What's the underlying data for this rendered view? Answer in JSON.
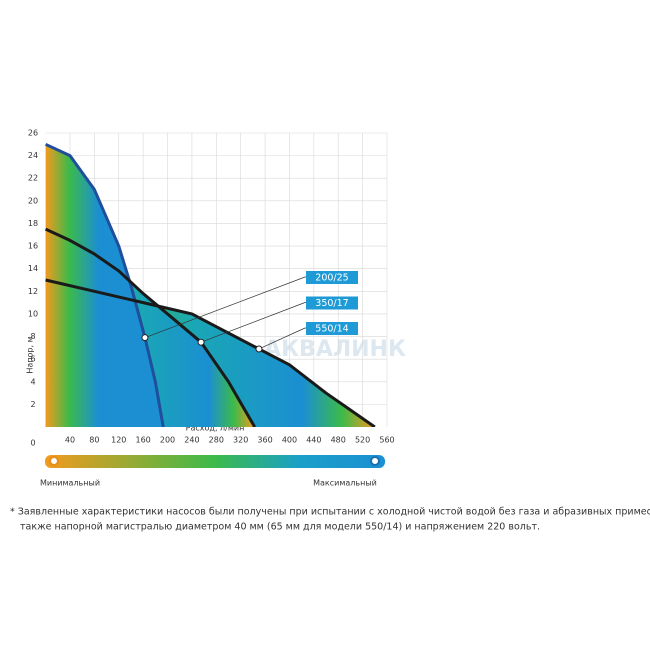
{
  "chart_data": {
    "type": "line",
    "y_label": "Напор, м",
    "x_label": "Расход, л/мин",
    "xlim": [
      0,
      560
    ],
    "ylim": [
      0,
      26
    ],
    "xticks": [
      40,
      80,
      120,
      160,
      200,
      240,
      280,
      320,
      360,
      400,
      440,
      480,
      520,
      560
    ],
    "yticks": [
      2,
      4,
      6,
      8,
      10,
      12,
      14,
      16,
      18,
      20,
      22,
      24,
      26
    ],
    "origin_label": "0",
    "grid": true,
    "series": [
      {
        "name": "200/25",
        "color": "#1f4e9c",
        "x": [
          0,
          40,
          80,
          120,
          140,
          163,
          180,
          193
        ],
        "values": [
          25,
          24,
          21,
          16,
          12.5,
          7.9,
          4,
          0
        ],
        "marker_index": 5
      },
      {
        "name": "350/17",
        "color": "#1a1a1a",
        "x": [
          0,
          40,
          80,
          120,
          160,
          200,
          255,
          300,
          343
        ],
        "values": [
          17.5,
          16.5,
          15.3,
          13.8,
          11.8,
          10,
          7.5,
          4,
          0
        ],
        "marker_index": 6
      },
      {
        "name": "550/14",
        "color": "#1a1a1a",
        "x": [
          0,
          80,
          160,
          240,
          350,
          400,
          460,
          500,
          540
        ],
        "values": [
          13,
          12,
          11,
          10,
          6.9,
          5.5,
          3,
          1.5,
          0
        ],
        "marker_index": 4
      }
    ],
    "legend_color": "#1e9ad6",
    "scale_labels": [
      "Минимальный",
      "Максимальный"
    ],
    "watermark": "АКВАЛИНК"
  },
  "footnote": [
    "* Заявленные характеристики насосов были получены при испытании с холодной чистой водой без газа и абразивных примесей, а",
    "также напорной магистралью диаметром 40 мм (65 мм для модели 550/14) и напряжением 220 вольт."
  ]
}
